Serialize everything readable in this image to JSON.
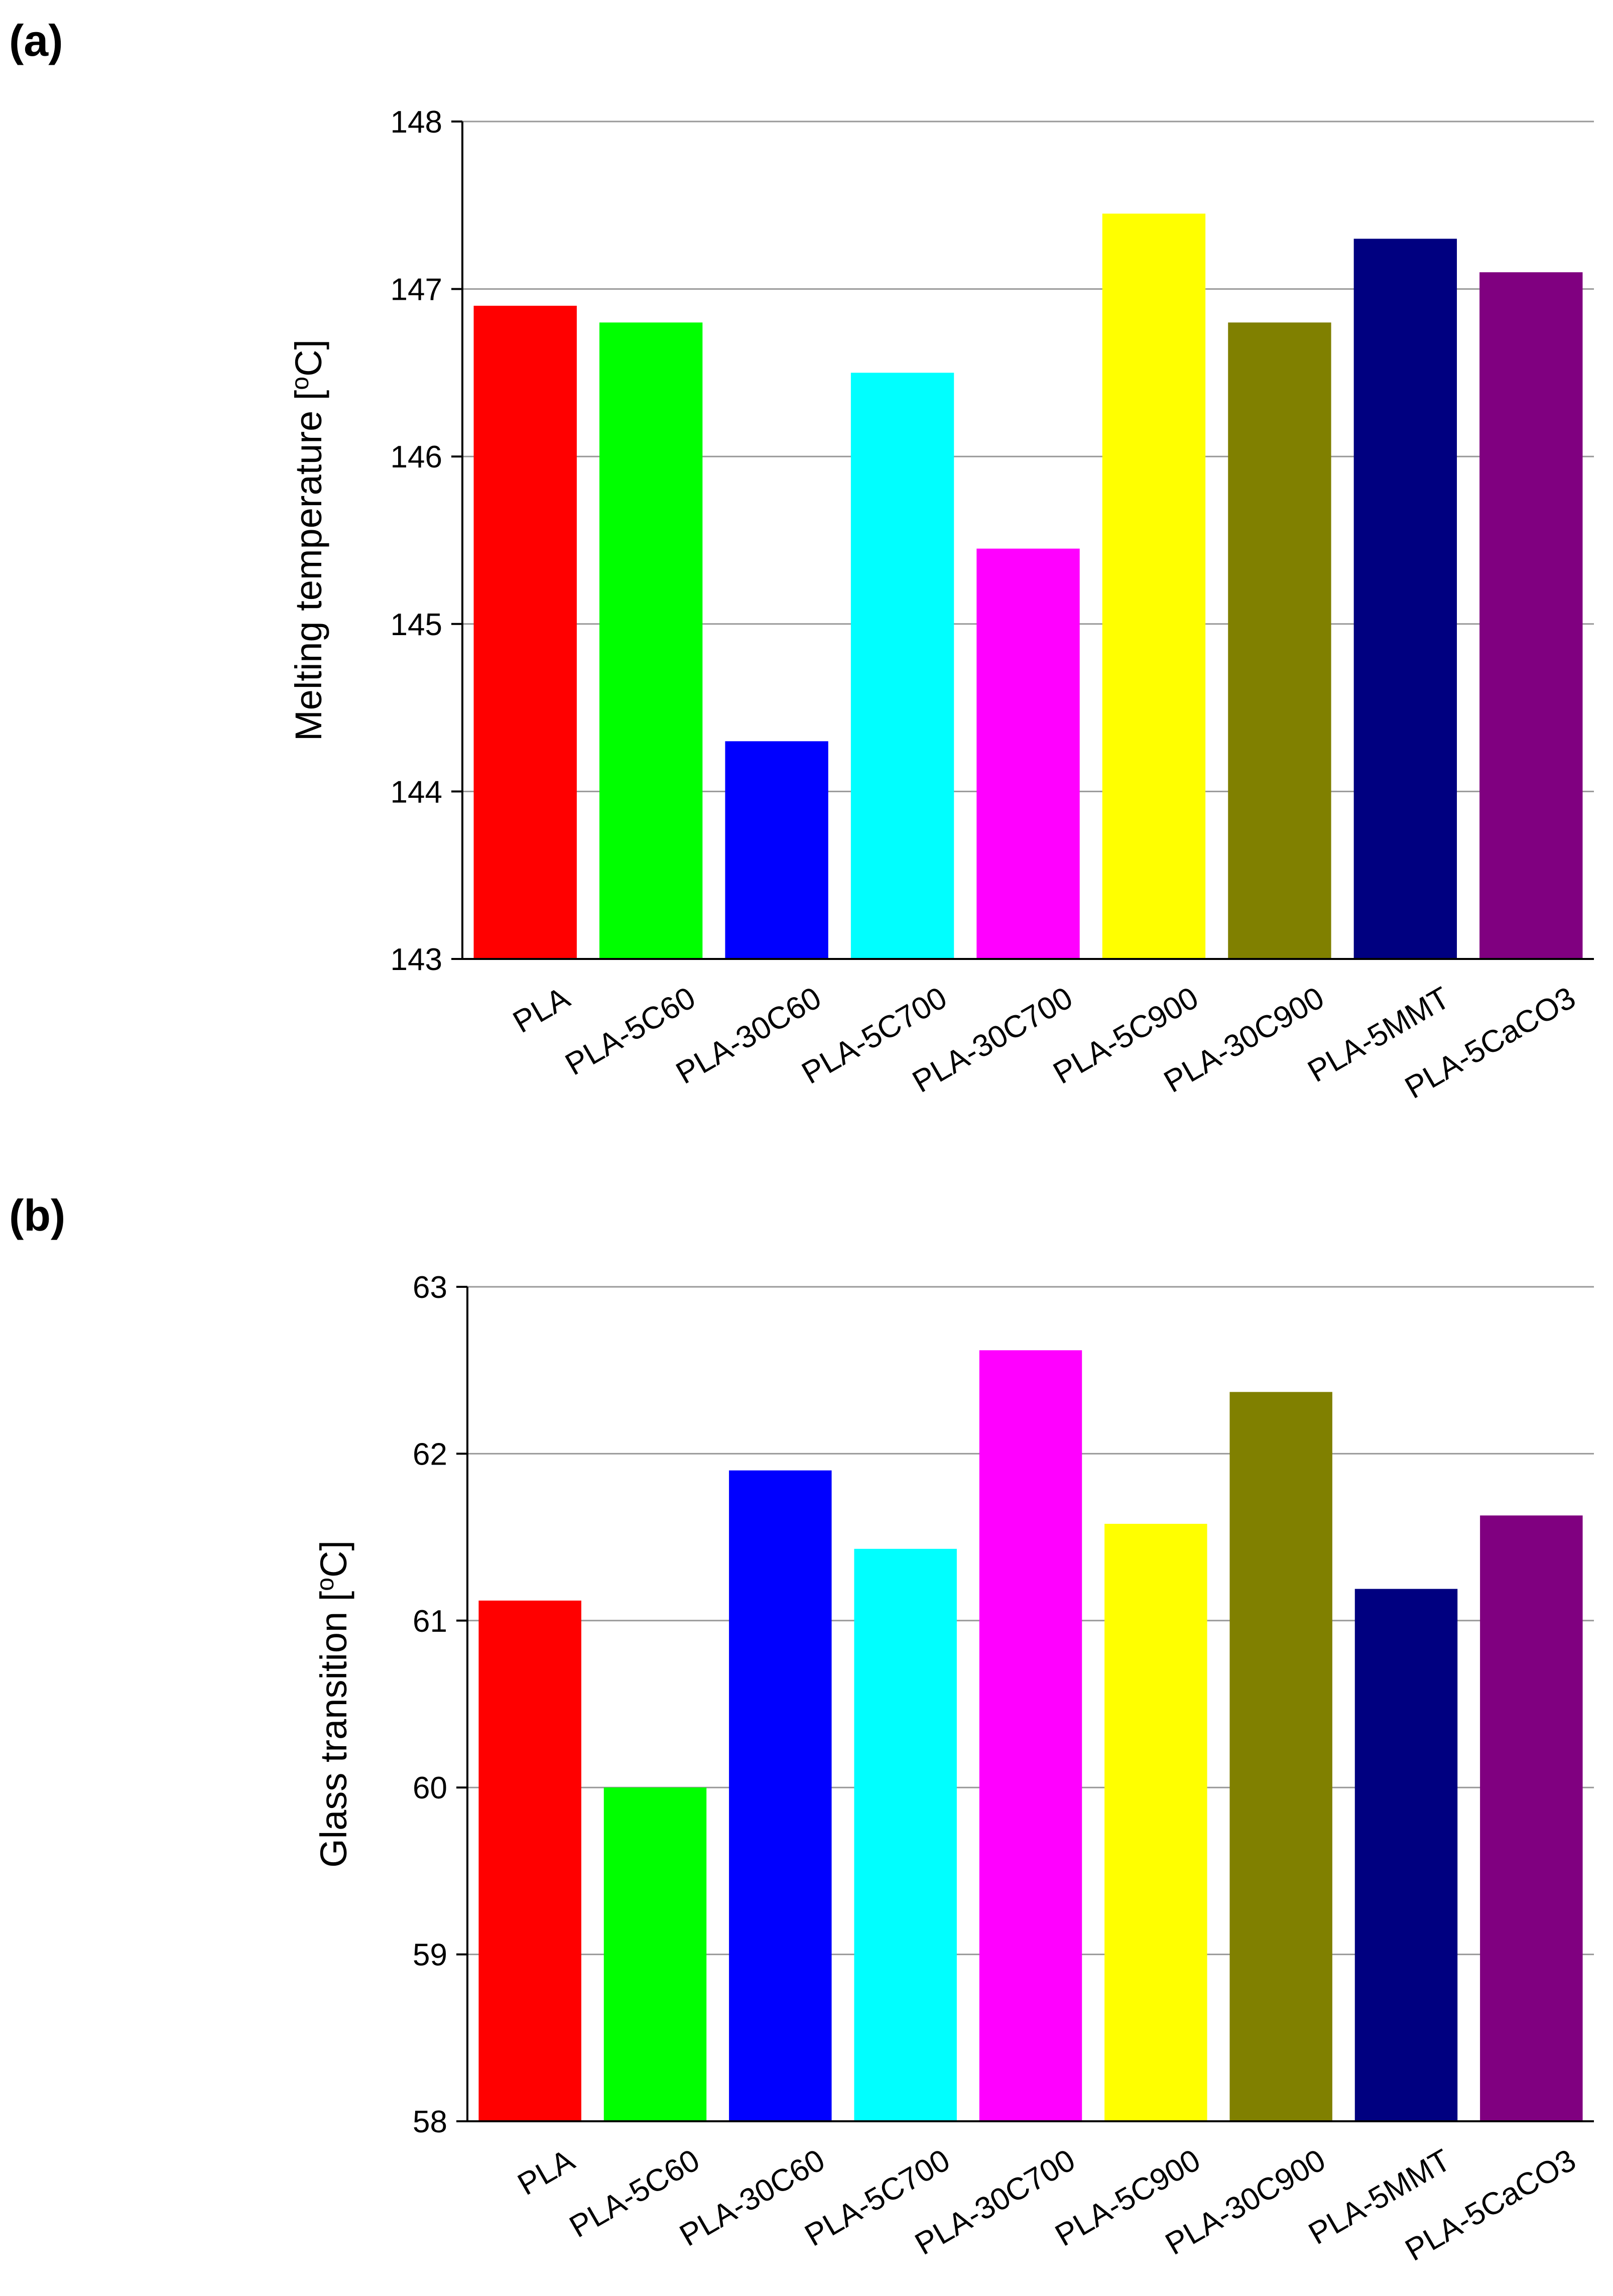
{
  "panels": {
    "a": {
      "label": "(a)"
    },
    "b": {
      "label": "(b)"
    }
  },
  "colors": {
    "axis": "#000000",
    "grid": "#999999",
    "bars": [
      "#ff0000",
      "#00ff00",
      "#0000ff",
      "#00ffff",
      "#ff00ff",
      "#ffff00",
      "#808000",
      "#000080",
      "#800080"
    ]
  },
  "chart_data": [
    {
      "type": "bar",
      "panel": "(a)",
      "title": "",
      "xlabel": "",
      "ylabel": "Melting temperature [°C]",
      "ylabel_main": "Melting temperature [",
      "ylabel_sup": "o",
      "ylabel_tail": "C]",
      "categories": [
        "PLA",
        "PLA-5C60",
        "PLA-30C60",
        "PLA-5C700",
        "PLA-30C700",
        "PLA-5C900",
        "PLA-30C900",
        "PLA-5MMT",
        "PLA-5CaCO3"
      ],
      "values": [
        146.9,
        146.8,
        144.3,
        146.5,
        145.45,
        147.45,
        146.8,
        147.3,
        147.1
      ],
      "ylim": [
        143,
        148
      ],
      "yticks": [
        143,
        144,
        145,
        146,
        147,
        148
      ],
      "grid": true
    },
    {
      "type": "bar",
      "panel": "(b)",
      "title": "",
      "xlabel": "",
      "ylabel": "Glass transition [°C]",
      "ylabel_main": "Glass transition [",
      "ylabel_sup": "o",
      "ylabel_tail": "C]",
      "categories": [
        "PLA",
        "PLA-5C60",
        "PLA-30C60",
        "PLA-5C700",
        "PLA-30C700",
        "PLA-5C900",
        "PLA-30C900",
        "PLA-5MMT",
        "PLA-5CaCO3"
      ],
      "values": [
        61.12,
        60.0,
        61.9,
        61.43,
        62.62,
        61.58,
        62.37,
        61.19,
        61.63
      ],
      "ylim": [
        58,
        63
      ],
      "yticks": [
        58,
        59,
        60,
        61,
        62,
        63
      ],
      "grid": true
    }
  ]
}
